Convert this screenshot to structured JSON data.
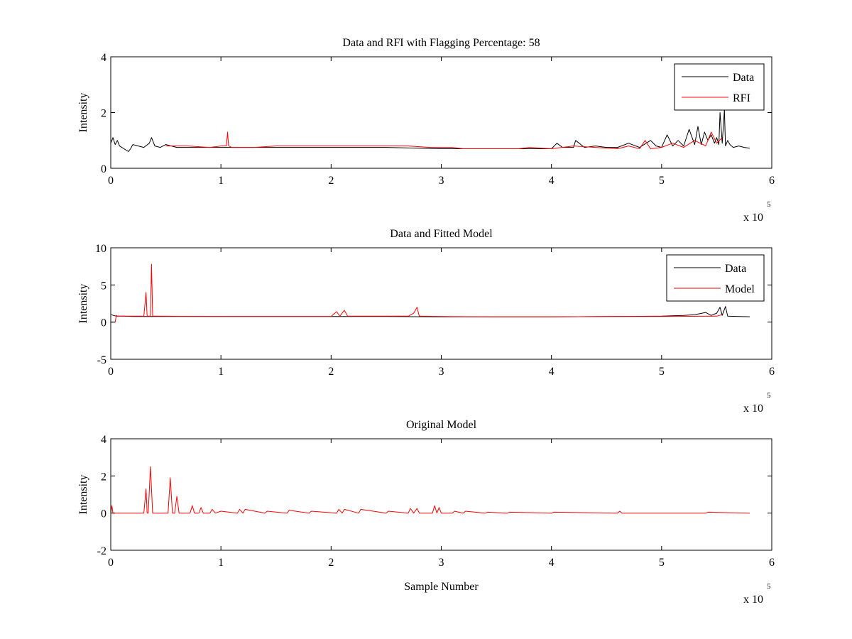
{
  "figure": {
    "background": "#ffffff",
    "data_color": "#000000",
    "rfi_color": "#ff0000"
  },
  "chart_data": [
    {
      "type": "line",
      "title": "Data and RFI with Flagging Percentage: 58",
      "xlabel": "",
      "ylabel": "Intensity",
      "xlim": [
        0,
        6
      ],
      "ylim": [
        0,
        4
      ],
      "xticks": [
        "0",
        "1",
        "2",
        "3",
        "4",
        "5",
        "6"
      ],
      "yticks": [
        "0",
        "2",
        "4"
      ],
      "x_multiplier": "x 10",
      "x_multiplier_exp": "5",
      "legend": {
        "position": "top-right",
        "entries": [
          {
            "name": "Data",
            "color": "#000000"
          },
          {
            "name": "RFI",
            "color": "#ff0000"
          }
        ]
      },
      "series": [
        {
          "name": "Data",
          "color": "#000000",
          "x": [
            0.0,
            0.02,
            0.04,
            0.06,
            0.08,
            0.1,
            0.12,
            0.14,
            0.16,
            0.18,
            0.2,
            0.25,
            0.3,
            0.35,
            0.37,
            0.4,
            0.45,
            0.5,
            0.55,
            0.6,
            0.8,
            1.0,
            1.2,
            1.5,
            2.0,
            2.5,
            3.0,
            3.5,
            4.0,
            4.05,
            4.1,
            4.2,
            4.22,
            4.3,
            4.4,
            4.5,
            4.6,
            4.7,
            4.8,
            4.9,
            4.95,
            5.0,
            5.05,
            5.1,
            5.15,
            5.2,
            5.25,
            5.3,
            5.33,
            5.36,
            5.39,
            5.42,
            5.45,
            5.48,
            5.5,
            5.52,
            5.53,
            5.55,
            5.57,
            5.58,
            5.6,
            5.62,
            5.65,
            5.7,
            5.75,
            5.8
          ],
          "y": [
            0.9,
            1.1,
            0.85,
            1.0,
            0.8,
            0.75,
            0.7,
            0.65,
            0.6,
            0.7,
            0.85,
            0.8,
            0.75,
            0.9,
            1.1,
            0.8,
            0.75,
            0.85,
            0.8,
            0.75,
            0.75,
            0.75,
            0.75,
            0.75,
            0.75,
            0.75,
            0.7,
            0.7,
            0.7,
            0.9,
            0.75,
            0.75,
            1.0,
            0.75,
            0.8,
            0.75,
            0.75,
            0.9,
            0.75,
            1.0,
            0.8,
            0.75,
            1.2,
            0.8,
            1.0,
            0.8,
            1.4,
            0.85,
            1.5,
            0.85,
            1.3,
            1.0,
            1.2,
            0.9,
            1.1,
            0.85,
            2.0,
            0.9,
            2.1,
            0.8,
            1.0,
            0.85,
            0.75,
            0.8,
            0.75,
            0.72
          ]
        },
        {
          "name": "RFI",
          "color": "#ff0000",
          "x": [
            0.5,
            0.7,
            0.9,
            1.0,
            1.05,
            1.06,
            1.07,
            1.1,
            1.3,
            1.5,
            1.7,
            1.9,
            2.1,
            2.3,
            2.5,
            2.7,
            2.9,
            3.1,
            3.2,
            3.6,
            3.7,
            3.8,
            4.0,
            4.2,
            4.4,
            4.6,
            4.7,
            4.8,
            4.85,
            4.9,
            5.0,
            5.1,
            5.2,
            5.3,
            5.4,
            5.45,
            5.5,
            5.55
          ],
          "y": [
            0.8,
            0.8,
            0.75,
            0.8,
            0.8,
            1.3,
            0.8,
            0.75,
            0.75,
            0.8,
            0.8,
            0.8,
            0.8,
            0.8,
            0.8,
            0.8,
            0.75,
            0.75,
            0.7,
            0.7,
            0.7,
            0.75,
            0.7,
            0.8,
            0.75,
            0.7,
            0.8,
            0.7,
            1.0,
            0.7,
            0.75,
            0.9,
            0.75,
            1.0,
            0.8,
            1.3,
            0.9,
            1.1
          ]
        }
      ]
    },
    {
      "type": "line",
      "title": "Data and Fitted Model",
      "xlabel": "",
      "ylabel": "Intensity",
      "xlim": [
        0,
        6
      ],
      "ylim": [
        -5,
        10
      ],
      "xticks": [
        "0",
        "1",
        "2",
        "3",
        "4",
        "5",
        "6"
      ],
      "yticks": [
        "-5",
        "0",
        "5",
        "10"
      ],
      "x_multiplier": "x 10",
      "x_multiplier_exp": "5",
      "legend": {
        "position": "top-right",
        "entries": [
          {
            "name": "Data",
            "color": "#000000"
          },
          {
            "name": "Model",
            "color": "#ff0000"
          }
        ]
      },
      "series": [
        {
          "name": "Data",
          "color": "#000000",
          "x": [
            0.0,
            0.05,
            0.1,
            0.2,
            0.5,
            1.0,
            1.5,
            2.0,
            2.5,
            3.0,
            3.5,
            4.0,
            4.5,
            5.0,
            5.2,
            5.3,
            5.4,
            5.45,
            5.5,
            5.53,
            5.55,
            5.58,
            5.6,
            5.7,
            5.8
          ],
          "y": [
            1.0,
            0.8,
            0.8,
            0.75,
            0.75,
            0.75,
            0.75,
            0.75,
            0.75,
            0.7,
            0.7,
            0.7,
            0.75,
            0.8,
            0.9,
            1.0,
            1.3,
            0.9,
            1.2,
            2.0,
            0.9,
            2.1,
            0.8,
            0.75,
            0.72
          ]
        },
        {
          "name": "Model",
          "color": "#ff0000",
          "x": [
            0.0,
            0.02,
            0.04,
            0.05,
            0.06,
            0.1,
            0.3,
            0.32,
            0.33,
            0.34,
            0.36,
            0.37,
            0.38,
            0.4,
            1.0,
            2.0,
            2.05,
            2.08,
            2.12,
            2.15,
            2.5,
            2.7,
            2.75,
            2.78,
            2.8,
            3.0,
            3.5,
            4.0,
            4.5,
            5.0,
            5.5,
            5.55
          ],
          "y": [
            0.0,
            0.0,
            0.0,
            0.9,
            0.8,
            0.8,
            0.8,
            4.0,
            0.8,
            0.8,
            0.8,
            7.8,
            0.8,
            0.8,
            0.75,
            0.75,
            1.4,
            0.8,
            1.6,
            0.8,
            0.8,
            0.8,
            1.2,
            2.0,
            0.8,
            0.75,
            0.7,
            0.7,
            0.75,
            0.75,
            0.8,
            1.0
          ]
        }
      ]
    },
    {
      "type": "line",
      "title": "Original Model",
      "xlabel": "Sample Number",
      "ylabel": "Intensity",
      "xlim": [
        0,
        6
      ],
      "ylim": [
        -2,
        4
      ],
      "xticks": [
        "0",
        "1",
        "2",
        "3",
        "4",
        "5",
        "6"
      ],
      "yticks": [
        "-2",
        "0",
        "2",
        "4"
      ],
      "x_multiplier": "x 10",
      "x_multiplier_exp": "5",
      "series": [
        {
          "name": "Model",
          "color": "#ff0000",
          "x": [
            0.0,
            0.01,
            0.02,
            0.03,
            0.3,
            0.32,
            0.33,
            0.34,
            0.36,
            0.38,
            0.4,
            0.52,
            0.54,
            0.56,
            0.58,
            0.6,
            0.62,
            0.72,
            0.74,
            0.76,
            0.8,
            0.82,
            0.84,
            0.9,
            0.92,
            0.95,
            1.0,
            1.15,
            1.17,
            1.2,
            1.22,
            1.4,
            1.42,
            1.6,
            1.62,
            1.8,
            1.82,
            2.05,
            2.07,
            2.1,
            2.12,
            2.25,
            2.27,
            2.5,
            2.52,
            2.7,
            2.72,
            2.75,
            2.78,
            2.8,
            2.92,
            2.94,
            2.96,
            2.98,
            3.0,
            3.1,
            3.12,
            3.2,
            3.22,
            3.4,
            3.42,
            3.6,
            3.62,
            4.0,
            4.02,
            4.6,
            4.62,
            4.64,
            5.4,
            5.42,
            5.8
          ],
          "y": [
            0.0,
            0.4,
            0.0,
            0.0,
            0.0,
            1.3,
            0.0,
            0.0,
            2.5,
            0.0,
            0.0,
            0.0,
            1.9,
            0.0,
            0.0,
            0.9,
            0.0,
            0.0,
            0.4,
            0.0,
            0.0,
            0.3,
            0.0,
            0.0,
            0.2,
            0.0,
            0.1,
            0.0,
            0.2,
            0.0,
            0.2,
            0.0,
            0.1,
            0.0,
            0.15,
            0.0,
            0.1,
            0.0,
            0.2,
            0.0,
            0.2,
            0.0,
            0.2,
            0.0,
            0.1,
            0.0,
            0.25,
            0.0,
            0.25,
            0.0,
            0.0,
            0.4,
            0.0,
            0.3,
            0.0,
            0.0,
            0.1,
            0.0,
            0.1,
            0.0,
            0.05,
            0.0,
            0.05,
            0.0,
            0.05,
            0.0,
            0.1,
            0.0,
            0.0,
            0.05,
            0.0
          ]
        }
      ]
    }
  ]
}
